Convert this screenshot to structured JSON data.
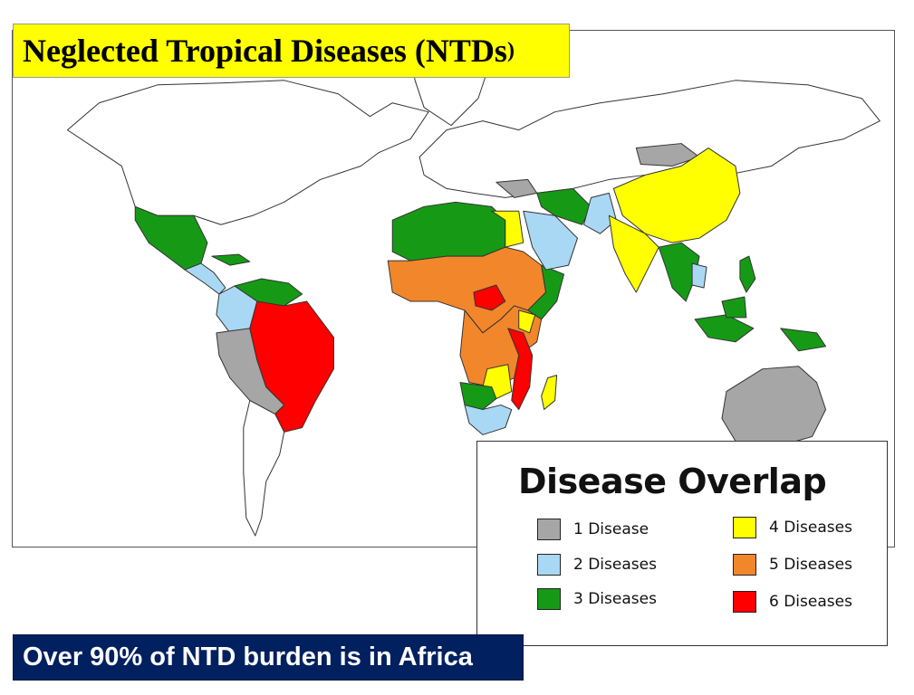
{
  "title": {
    "main": "Neglected Tropical Diseases (NTDs",
    "paren": ")"
  },
  "legend": {
    "title": "Disease Overlap",
    "items": [
      {
        "label": "1 Disease",
        "color": "#a6a6a6"
      },
      {
        "label": "2 Diseases",
        "color": "#a9d8f5"
      },
      {
        "label": "3 Diseases",
        "color": "#169a16"
      },
      {
        "label": "4 Diseases",
        "color": "#ffff00"
      },
      {
        "label": "5 Diseases",
        "color": "#f2862b"
      },
      {
        "label": "6 Diseases",
        "color": "#ff0000"
      }
    ]
  },
  "footer": {
    "text": "Over 90% of NTD burden is in Africa"
  },
  "map": {
    "colors": {
      "ocean": "#ffffff",
      "land_default": "#ffffff",
      "border": "#333333"
    }
  }
}
